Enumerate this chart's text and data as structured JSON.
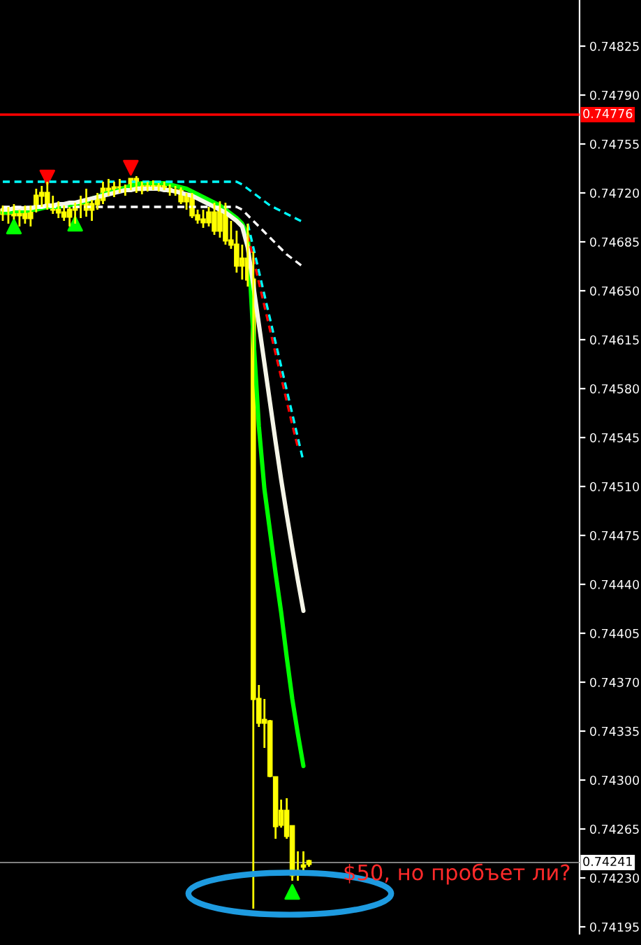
{
  "chart_data": {
    "type": "candlestick",
    "categories": [
      null,
      null,
      null,
      null,
      null,
      null,
      null,
      null,
      null,
      null,
      null,
      null,
      null,
      null,
      null,
      null,
      null,
      null,
      null,
      null,
      null,
      null,
      null,
      null,
      null,
      null,
      null,
      null,
      null,
      null,
      null,
      null,
      null,
      null,
      null,
      null,
      null,
      null,
      null,
      null,
      null,
      null,
      null,
      null,
      null,
      null,
      null,
      null,
      null,
      null,
      null,
      null,
      null,
      null,
      null,
      null
    ],
    "ylim": [
      0.7419,
      0.74858
    ],
    "yticks": [
      0.74195,
      {
        "value": 0.7423,
        "label": "0.74230"
      },
      0.74265,
      {
        "value": 0.743,
        "label": "0.74300"
      },
      0.74335,
      {
        "value": 0.7437,
        "label": "0.74370"
      },
      0.74405,
      {
        "value": 0.7444,
        "label": "0.74440"
      },
      0.74475,
      {
        "value": 0.7451,
        "label": "0.74510"
      },
      0.74545,
      {
        "value": 0.7458,
        "label": "0.74580"
      },
      0.74615,
      {
        "value": 0.7465,
        "label": "0.74650"
      },
      0.74685,
      {
        "value": 0.7472,
        "label": "0.74720"
      },
      0.74755,
      {
        "value": 0.7479,
        "label": "0.74790"
      },
      0.74825
    ],
    "grid": false,
    "legend": false,
    "tick_labels": "y",
    "ref_lines": [
      {
        "axis": "y",
        "value": 0.74776,
        "label": "0.74776",
        "color": "#ff0000"
      },
      {
        "axis": "y",
        "value": 0.74241,
        "label": "0.74241",
        "color": "#808080"
      }
    ],
    "annotations": [
      "$50, но пробъет ли?"
    ],
    "series": [
      {
        "type": "candlestick",
        "color": "#ffff00",
        "ohlc": [
          [
            0.74708,
            0.74711,
            0.747,
            0.74705
          ],
          [
            0.74705,
            0.7471,
            0.74698,
            0.74707
          ],
          [
            0.74707,
            0.74712,
            0.74701,
            0.74704
          ],
          [
            0.74704,
            0.74708,
            0.74696,
            0.74706
          ],
          [
            0.74706,
            0.74711,
            0.74698,
            0.74702
          ],
          [
            0.74702,
            0.74711,
            0.74696,
            0.74709
          ],
          [
            0.74709,
            0.74723,
            0.74706,
            0.74718
          ],
          [
            0.74718,
            0.74725,
            0.7471,
            0.7472
          ],
          [
            0.7472,
            0.74728,
            0.74708,
            0.74711
          ],
          [
            0.74711,
            0.74718,
            0.74705,
            0.74708
          ],
          [
            0.74708,
            0.74714,
            0.74702,
            0.74706
          ],
          [
            0.74706,
            0.74711,
            0.747,
            0.74703
          ],
          [
            0.74703,
            0.7471,
            0.74696,
            0.74708
          ],
          [
            0.74708,
            0.74713,
            0.74698,
            0.74712
          ],
          [
            0.74712,
            0.74718,
            0.74702,
            0.74714
          ],
          [
            0.74714,
            0.74723,
            0.74703,
            0.74708
          ],
          [
            0.74708,
            0.74715,
            0.747,
            0.74712
          ],
          [
            0.74712,
            0.7472,
            0.74708,
            0.74715
          ],
          [
            0.74715,
            0.74728,
            0.74712,
            0.74723
          ],
          [
            0.74723,
            0.7473,
            0.74718,
            0.7472
          ],
          [
            0.7472,
            0.74728,
            0.74717,
            0.74724
          ],
          [
            0.74724,
            0.7473,
            0.7472,
            0.74722
          ],
          [
            0.74722,
            0.74726,
            0.74718,
            0.74724
          ],
          [
            0.74724,
            0.7473,
            0.74722,
            0.7473
          ],
          [
            0.7473,
            0.74732,
            0.7472,
            0.74722
          ],
          [
            0.74722,
            0.74728,
            0.74719,
            0.74725
          ],
          [
            0.74725,
            0.74728,
            0.74721,
            0.74726
          ],
          [
            0.74726,
            0.74729,
            0.74722,
            0.74724
          ],
          [
            0.74724,
            0.74727,
            0.74721,
            0.74725
          ],
          [
            0.74725,
            0.74728,
            0.74722,
            0.74723
          ],
          [
            0.74723,
            0.74726,
            0.74718,
            0.74721
          ],
          [
            0.74721,
            0.74725,
            0.74718,
            0.74722
          ],
          [
            0.74722,
            0.74724,
            0.74712,
            0.74714
          ],
          [
            0.74714,
            0.7472,
            0.74708,
            0.74718
          ],
          [
            0.74718,
            0.7472,
            0.74702,
            0.74704
          ],
          [
            0.74704,
            0.74708,
            0.74698,
            0.74701
          ],
          [
            0.74701,
            0.74708,
            0.74695,
            0.74699
          ],
          [
            0.74699,
            0.7471,
            0.74696,
            0.74706
          ],
          [
            0.74706,
            0.74713,
            0.7469,
            0.74693
          ],
          [
            0.74693,
            0.74714,
            0.74688,
            0.74708
          ],
          [
            0.74708,
            0.74713,
            0.74683,
            0.74686
          ],
          [
            0.74686,
            0.747,
            0.7468,
            0.74683
          ],
          [
            0.74683,
            0.74693,
            0.74663,
            0.74668
          ],
          [
            0.74668,
            0.74683,
            0.74658,
            0.74673
          ],
          [
            0.74673,
            0.74698,
            0.74653,
            0.74658
          ],
          [
            0.74658,
            0.74678,
            0.74208,
            0.74358
          ],
          [
            0.74358,
            0.74368,
            0.74338,
            0.74341
          ],
          [
            0.74343,
            0.74358,
            0.74323,
            0.74341
          ],
          [
            0.74342,
            0.74343,
            0.74302,
            0.74303
          ],
          [
            0.74302,
            0.74302,
            0.74258,
            0.74267
          ],
          [
            0.74268,
            0.74286,
            0.74266,
            0.74278
          ],
          [
            0.74278,
            0.74287,
            0.74258,
            0.7426
          ],
          [
            0.74267,
            0.74267,
            0.74228,
            0.74232
          ],
          [
            0.74233,
            0.74249,
            0.74228,
            0.74235
          ],
          [
            0.74238,
            0.74249,
            0.74233,
            0.74239
          ],
          [
            0.7424,
            0.74243,
            0.74238,
            0.74242
          ]
        ]
      },
      {
        "type": "line",
        "color": "#00ff00",
        "line_style": "solid",
        "values": [
          0.74706,
          0.74706,
          0.74707,
          0.74707,
          0.74707,
          0.74708,
          0.74708,
          0.74709,
          0.7471,
          0.7471,
          0.7471,
          0.74711,
          0.74711,
          0.74712,
          0.74713,
          0.74714,
          0.74716,
          0.74717,
          0.74719,
          0.7472,
          0.74721,
          0.74722,
          0.74724,
          0.74725,
          0.74726,
          0.74727,
          0.74727,
          0.74727,
          0.74727,
          0.74727,
          0.74726,
          0.74725,
          0.74724,
          0.74723,
          0.74721,
          0.74719,
          0.74717,
          0.74715,
          0.74713,
          0.74711,
          0.74708,
          0.74705,
          0.74702,
          0.74698,
          0.7469,
          0.74618,
          0.74553,
          0.74508,
          0.74478,
          0.74448,
          0.7442,
          0.74388,
          0.74358,
          0.74333,
          0.7431,
          null
        ]
      },
      {
        "type": "line",
        "color": "#f5f5e8",
        "line_style": "solid",
        "values": [
          0.74708,
          0.74708,
          0.74709,
          0.74709,
          0.74709,
          0.74709,
          0.7471,
          0.7471,
          0.74711,
          0.74711,
          0.74712,
          0.74712,
          0.74713,
          0.74713,
          0.74714,
          0.74715,
          0.74716,
          0.74717,
          0.74718,
          0.74719,
          0.7472,
          0.74721,
          0.74722,
          0.74722,
          0.74723,
          0.74723,
          0.74723,
          0.74723,
          0.74723,
          0.74722,
          0.74722,
          0.74721,
          0.7472,
          0.74719,
          0.74718,
          0.74716,
          0.74714,
          0.74712,
          0.7471,
          0.74708,
          0.74706,
          0.74703,
          0.747,
          0.74696,
          0.74681,
          0.74654,
          0.74626,
          0.74598,
          0.7457,
          0.74542,
          0.74515,
          0.7449,
          0.74466,
          0.74443,
          0.74421,
          null
        ]
      },
      {
        "type": "line",
        "color": "#00ffff",
        "line_style": "dashed",
        "values": [
          0.74728,
          0.74728,
          0.74728,
          0.74728,
          0.74728,
          0.74728,
          0.74728,
          0.74728,
          0.74728,
          0.74728,
          0.74728,
          0.74728,
          0.74728,
          0.74728,
          0.74728,
          0.74728,
          0.74728,
          0.74728,
          0.74728,
          0.74728,
          0.74728,
          0.74728,
          0.74728,
          0.74728,
          0.74728,
          0.74728,
          0.74728,
          0.74728,
          0.74728,
          0.74728,
          0.74728,
          0.74728,
          0.74728,
          0.74728,
          0.74728,
          0.74728,
          0.74728,
          0.74728,
          0.74728,
          0.74728,
          0.74728,
          0.74728,
          0.74728,
          0.74726,
          0.74723,
          0.7472,
          0.74717,
          0.74714,
          0.74711,
          0.74709,
          0.74707,
          0.74705,
          0.74703,
          0.74701,
          0.74699,
          null
        ]
      },
      {
        "type": "line",
        "color": "#ffffff",
        "line_style": "dashed",
        "values": [
          0.7471,
          0.7471,
          0.7471,
          0.7471,
          0.7471,
          0.7471,
          0.7471,
          0.7471,
          0.7471,
          0.7471,
          0.7471,
          0.7471,
          0.7471,
          0.7471,
          0.7471,
          0.7471,
          0.7471,
          0.7471,
          0.7471,
          0.7471,
          0.7471,
          0.7471,
          0.7471,
          0.7471,
          0.7471,
          0.7471,
          0.7471,
          0.7471,
          0.7471,
          0.7471,
          0.7471,
          0.7471,
          0.7471,
          0.7471,
          0.7471,
          0.7471,
          0.7471,
          0.7471,
          0.7471,
          0.7471,
          0.7471,
          0.7471,
          0.7471,
          0.74708,
          0.74704,
          0.747,
          0.74696,
          0.74692,
          0.74688,
          0.74684,
          0.7468,
          0.74676,
          0.74673,
          0.7467,
          0.74667,
          null
        ]
      },
      {
        "type": "line",
        "color": "#ff0000",
        "line_style": "dashed",
        "values": [
          null,
          null,
          null,
          null,
          null,
          null,
          null,
          null,
          null,
          null,
          null,
          null,
          null,
          null,
          null,
          null,
          null,
          null,
          null,
          null,
          null,
          null,
          null,
          null,
          null,
          null,
          null,
          null,
          null,
          null,
          null,
          null,
          null,
          null,
          null,
          null,
          null,
          null,
          null,
          null,
          null,
          null,
          null,
          null,
          0.7469,
          0.74673,
          0.74656,
          0.74639,
          0.74622,
          0.74605,
          0.74588,
          0.74571,
          0.74554,
          0.74538,
          null,
          null
        ]
      },
      {
        "type": "line",
        "color": "#00ffff",
        "line_style": "dashed",
        "values": [
          null,
          null,
          null,
          null,
          null,
          null,
          null,
          null,
          null,
          null,
          null,
          null,
          null,
          null,
          null,
          null,
          null,
          null,
          null,
          null,
          null,
          null,
          null,
          null,
          null,
          null,
          null,
          null,
          null,
          null,
          null,
          null,
          null,
          null,
          null,
          null,
          null,
          null,
          null,
          null,
          null,
          null,
          null,
          null,
          0.74698,
          0.74681,
          0.74664,
          0.74647,
          0.7463,
          0.74613,
          0.74596,
          0.74579,
          0.74562,
          0.74545,
          0.74528,
          null
        ]
      },
      {
        "type": "scatter",
        "color": "#ff0000",
        "marker": "triangle_down",
        "values": [
          null,
          null,
          null,
          null,
          null,
          null,
          null,
          null,
          0.74731,
          null,
          null,
          null,
          null,
          null,
          null,
          null,
          null,
          null,
          null,
          null,
          null,
          null,
          null,
          0.74738,
          null,
          null,
          null,
          null,
          null,
          null,
          null,
          null,
          null,
          null,
          null,
          null,
          null,
          null,
          null,
          null,
          null,
          null,
          null,
          null,
          null,
          null,
          null,
          null,
          null,
          null,
          null,
          null,
          null,
          null,
          null,
          null
        ]
      },
      {
        "type": "scatter",
        "color": "#00ff00",
        "marker": "triangle",
        "values": [
          null,
          null,
          0.74696,
          null,
          null,
          null,
          null,
          null,
          null,
          null,
          null,
          null,
          null,
          0.74698,
          null,
          null,
          null,
          null,
          null,
          null,
          null,
          null,
          null,
          null,
          null,
          null,
          null,
          null,
          null,
          null,
          null,
          null,
          null,
          null,
          null,
          null,
          null,
          null,
          null,
          null,
          null,
          null,
          null,
          null,
          null,
          null,
          null,
          null,
          null,
          null,
          null,
          null,
          0.7422,
          null,
          null,
          null
        ]
      }
    ]
  }
}
